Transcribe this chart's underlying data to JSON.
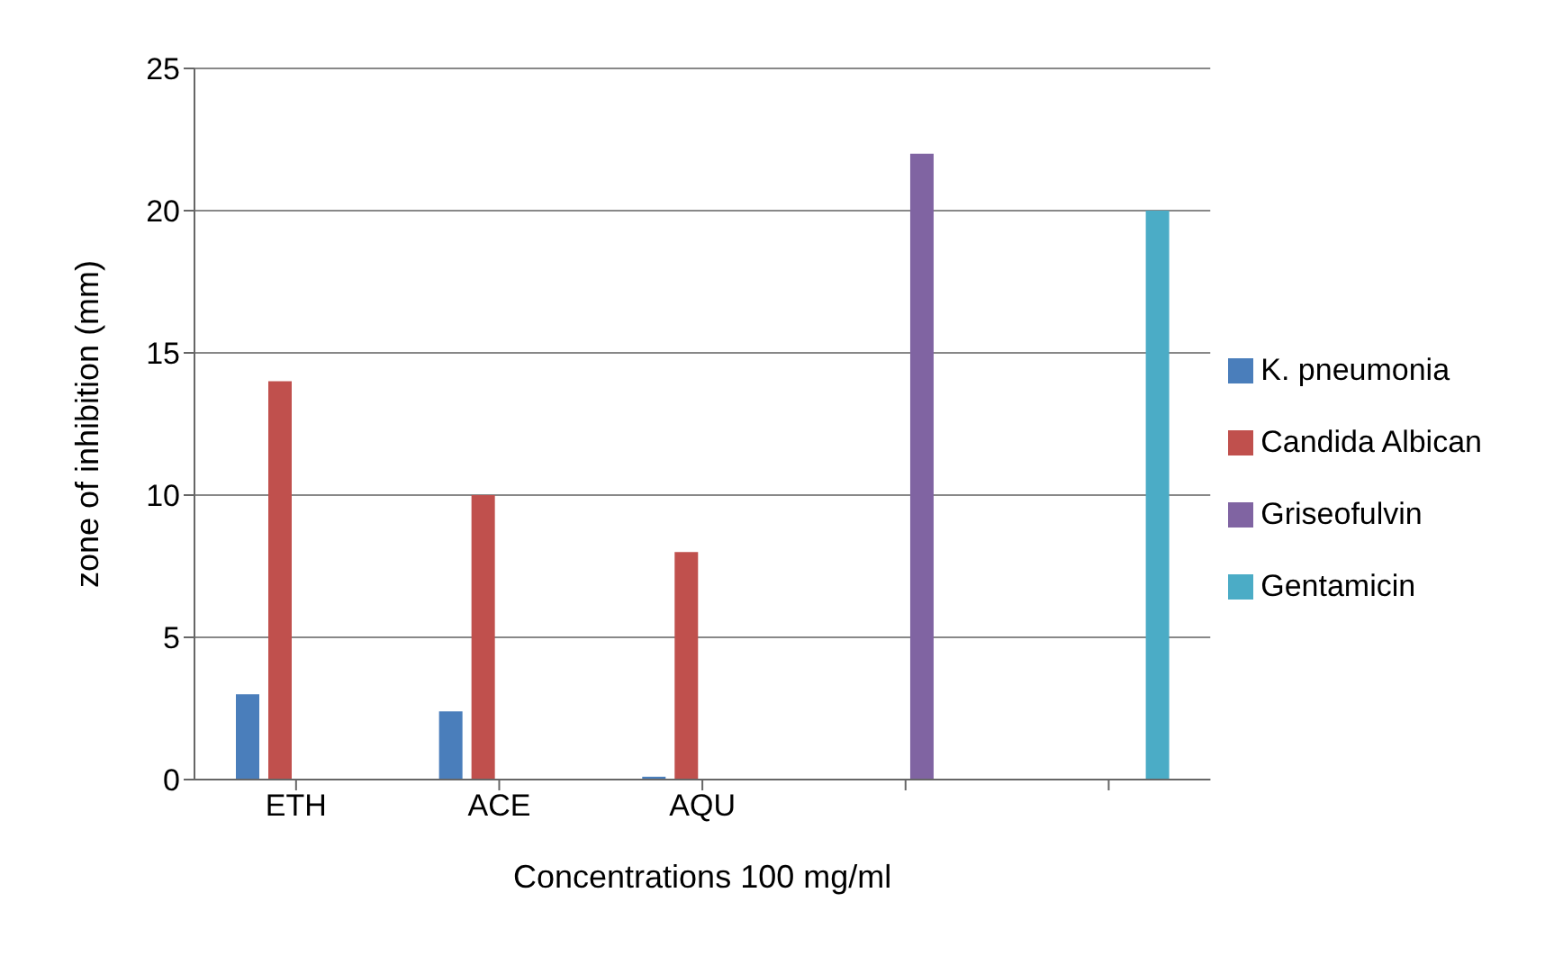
{
  "chart_data": {
    "type": "bar",
    "xlabel": "Concentrations 100 mg/ml",
    "ylabel": "zone of inhibition  (mm)",
    "categories": [
      "ETH",
      "ACE",
      "AQU",
      null,
      null
    ],
    "series": [
      {
        "name": "K. pneumonia",
        "color": "#4a7ebb",
        "values": [
          3,
          2.4,
          0.1,
          null,
          null
        ]
      },
      {
        "name": "Candida Albican",
        "color": "#c0504d",
        "values": [
          14,
          10,
          8,
          null,
          null
        ]
      },
      {
        "name": "Griseofulvin",
        "color": "#8064a2",
        "values": [
          null,
          null,
          null,
          22,
          null
        ]
      },
      {
        "name": "Gentamicin",
        "color": "#4bacc6",
        "values": [
          null,
          null,
          null,
          null,
          20
        ]
      }
    ],
    "ylim": [
      0,
      25
    ],
    "yticks": [
      0,
      5,
      10,
      15,
      20,
      25
    ],
    "grid": "y",
    "legend": "right"
  }
}
